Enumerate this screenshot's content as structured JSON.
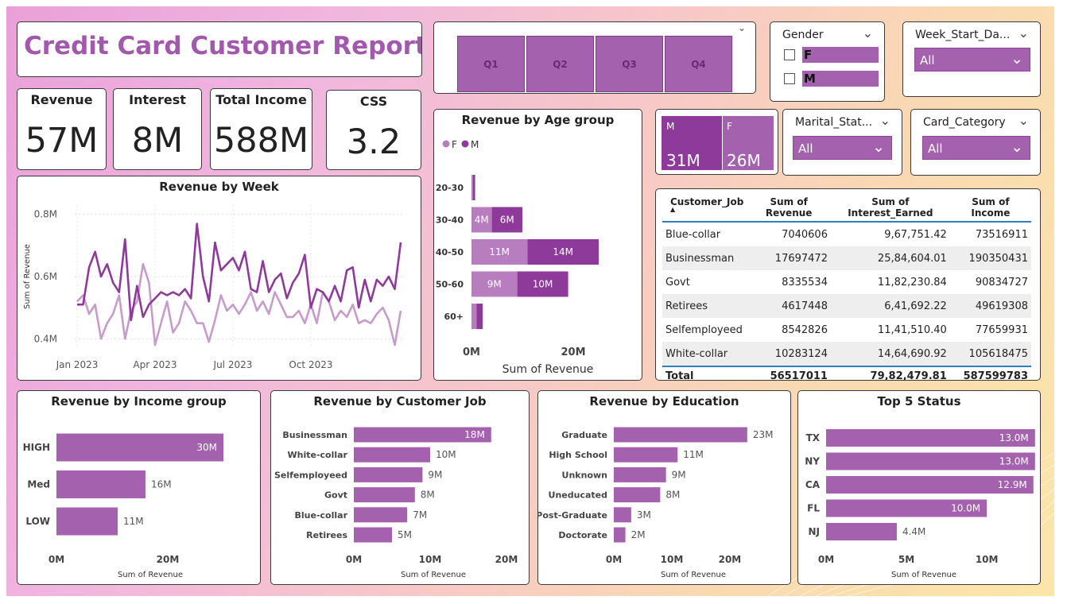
{
  "report": {
    "title": "Credit Card Customer Report"
  },
  "kpis": [
    {
      "label": "Revenue",
      "value": "57M"
    },
    {
      "label": "Interest",
      "value": "8M"
    },
    {
      "label": "Total Income",
      "value": "588M"
    },
    {
      "label": "CSS",
      "value": "3.2"
    }
  ],
  "quarters": [
    "Q1",
    "Q2",
    "Q3",
    "Q4"
  ],
  "gender_slicer": {
    "title": "Gender",
    "options": [
      "F",
      "M"
    ]
  },
  "week_slicer": {
    "title": "Week_Start_Da...",
    "value": "All"
  },
  "marital_slicer": {
    "title": "Marital_Stat...",
    "value": "All"
  },
  "card_slicer": {
    "title": "Card_Category",
    "value": "All"
  },
  "gender_tiles": [
    {
      "label": "M",
      "value": "31M",
      "color": "#8e3a9a"
    },
    {
      "label": "F",
      "value": "26M",
      "color": "#a461ad"
    }
  ],
  "colors": {
    "primary": "#a461ad",
    "dark": "#8e3a9a",
    "light": "#c79bcc",
    "table_accent": "#2f7fbf"
  },
  "job_table": {
    "headers": [
      "Customer_Job",
      "Sum of Revenue",
      "Sum of Interest_Earned",
      "Sum of Income"
    ],
    "rows": [
      [
        "Blue-collar",
        "7040606",
        "9,67,751.42",
        "73516911"
      ],
      [
        "Businessman",
        "17697472",
        "25,84,604.01",
        "190350431"
      ],
      [
        "Govt",
        "8335534",
        "11,82,230.84",
        "90834727"
      ],
      [
        "Retirees",
        "4617448",
        "6,41,692.22",
        "49619308"
      ],
      [
        "Selfemployeed",
        "8542826",
        "11,41,510.40",
        "77659931"
      ],
      [
        "White-collar",
        "10283124",
        "14,64,690.92",
        "105618475"
      ]
    ],
    "total": [
      "Total",
      "56517011",
      "79,82,479.81",
      "587599783"
    ]
  },
  "chart_data": [
    {
      "id": "week",
      "type": "line",
      "title": "Revenue by Week",
      "ylabel": "Sum of Revenue",
      "xlabel": "",
      "ylim": [
        0.37,
        0.83
      ],
      "yticks": [
        "0.4M",
        "0.6M",
        "0.8M"
      ],
      "ytick_values": [
        0.4,
        0.6,
        0.8
      ],
      "xticks": [
        "Jan 2023",
        "Apr 2023",
        "Jul 2023",
        "Oct 2023"
      ],
      "xtick_index": [
        0,
        13,
        26,
        39
      ],
      "series": [
        {
          "name": "M",
          "color": "#8e3a9a",
          "values": [
            0.51,
            0.51,
            0.63,
            0.68,
            0.6,
            0.64,
            0.58,
            0.55,
            0.72,
            0.46,
            0.57,
            0.47,
            0.51,
            0.53,
            0.55,
            0.54,
            0.55,
            0.54,
            0.56,
            0.53,
            0.77,
            0.6,
            0.52,
            0.71,
            0.62,
            0.64,
            0.66,
            0.62,
            0.68,
            0.56,
            0.55,
            0.65,
            0.55,
            0.59,
            0.61,
            0.53,
            0.58,
            0.61,
            0.67,
            0.5,
            0.56,
            0.55,
            0.52,
            0.57,
            0.52,
            0.62,
            0.63,
            0.5,
            0.59,
            0.52,
            0.59,
            0.57,
            0.6,
            0.56,
            0.71
          ]
        },
        {
          "name": "F",
          "color": "#c79bcc",
          "values": [
            0.52,
            0.54,
            0.48,
            0.51,
            0.4,
            0.45,
            0.48,
            0.54,
            0.4,
            0.49,
            0.52,
            0.64,
            0.58,
            0.38,
            0.45,
            0.52,
            0.42,
            0.45,
            0.52,
            0.49,
            0.45,
            0.45,
            0.39,
            0.46,
            0.54,
            0.49,
            0.51,
            0.48,
            0.51,
            0.55,
            0.49,
            0.52,
            0.48,
            0.55,
            0.51,
            0.47,
            0.47,
            0.49,
            0.45,
            0.51,
            0.45,
            0.55,
            0.52,
            0.46,
            0.49,
            0.47,
            0.51,
            0.45,
            0.46,
            0.45,
            0.48,
            0.5,
            0.46,
            0.38,
            0.49
          ]
        }
      ]
    },
    {
      "id": "age",
      "type": "bar",
      "title": "Revenue by Age group",
      "xlabel": "Sum of Revenue",
      "legend": [
        "F",
        "M"
      ],
      "legend_position": "top-left",
      "categories": [
        "20-30",
        "30-40",
        "40-50",
        "50-60",
        "60+"
      ],
      "series": [
        {
          "name": "F",
          "color": "#b77dbf",
          "values": [
            0.2,
            4,
            11,
            9,
            1
          ],
          "labels": [
            "",
            "4M",
            "11M",
            "9M",
            ""
          ]
        },
        {
          "name": "M",
          "color": "#8e3a9a",
          "values": [
            0.4,
            6,
            14,
            10,
            1.2
          ],
          "labels": [
            "",
            "6M",
            "14M",
            "10M",
            ""
          ]
        }
      ],
      "xticks": [
        "0M",
        "20M"
      ],
      "xtick_values": [
        0,
        20
      ],
      "xlim": [
        0,
        30
      ]
    },
    {
      "id": "income",
      "type": "bar",
      "title": "Revenue by Income group",
      "xlabel": "Sum of Revenue",
      "categories": [
        "HIGH",
        "Med",
        "LOW"
      ],
      "values": [
        30,
        16,
        11
      ],
      "labels": [
        "30M",
        "16M",
        "11M"
      ],
      "xticks": [
        "0M",
        "20M"
      ],
      "xtick_values": [
        0,
        20
      ],
      "xlim": [
        0,
        40
      ]
    },
    {
      "id": "job",
      "type": "bar",
      "title": "Revenue by Customer Job",
      "xlabel": "Sum of Revenue",
      "categories": [
        "Businessman",
        "White-collar",
        "Selfemployeed",
        "Govt",
        "Blue-collar",
        "Retirees"
      ],
      "values": [
        18,
        10,
        9,
        8,
        7,
        5
      ],
      "labels": [
        "18M",
        "10M",
        "9M",
        "8M",
        "7M",
        "5M"
      ],
      "xticks": [
        "0M",
        "10M",
        "20M"
      ],
      "xtick_values": [
        0,
        10,
        20
      ],
      "xlim": [
        0,
        20
      ]
    },
    {
      "id": "edu",
      "type": "bar",
      "title": "Revenue by Education",
      "xlabel": "Sum of Revenue",
      "categories": [
        "Graduate",
        "High School",
        "Unknown",
        "Uneducated",
        "Post-Graduate",
        "Doctorate"
      ],
      "values": [
        23,
        11,
        9,
        8,
        3,
        2
      ],
      "labels": [
        "23M",
        "11M",
        "9M",
        "8M",
        "3M",
        "2M"
      ],
      "xticks": [
        "0M",
        "10M",
        "20M"
      ],
      "xtick_values": [
        0,
        10,
        20
      ],
      "xlim": [
        0,
        27
      ]
    },
    {
      "id": "state",
      "type": "bar",
      "title": "Top 5 Status",
      "xlabel": "Sum of Revenue",
      "categories": [
        "TX",
        "NY",
        "CA",
        "FL",
        "NJ"
      ],
      "values": [
        13.0,
        13.0,
        12.9,
        10.0,
        4.4
      ],
      "labels": [
        "13.0M",
        "13.0M",
        "12.9M",
        "10.0M",
        "4.4M"
      ],
      "xticks": [
        "0M",
        "5M",
        "10M"
      ],
      "xtick_values": [
        0,
        5,
        10
      ],
      "xlim": [
        0,
        14
      ]
    }
  ]
}
